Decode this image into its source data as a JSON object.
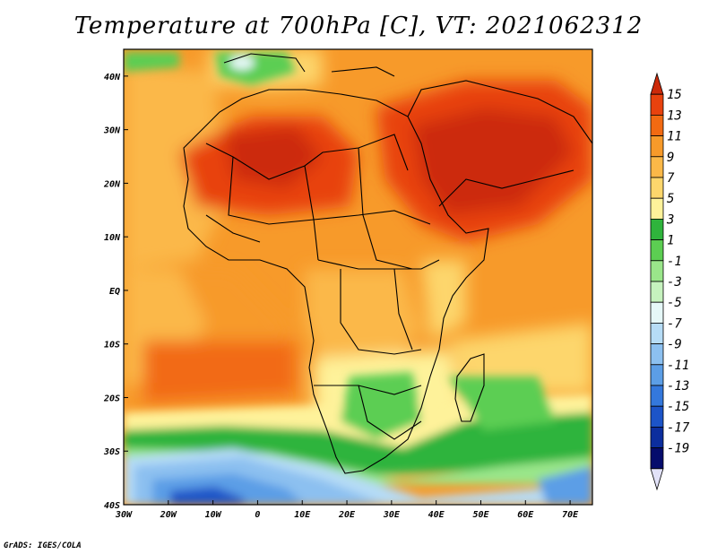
{
  "title": "Temperature at 700hPa [C], VT: 2021062312",
  "credit": "GrADS: IGES/COLA",
  "map": {
    "lon_range": [
      -30,
      75
    ],
    "lat_range": [
      -40,
      45
    ],
    "lon_ticks": [
      {
        "lon": -30,
        "label": "30W"
      },
      {
        "lon": -20,
        "label": "20W"
      },
      {
        "lon": -10,
        "label": "10W"
      },
      {
        "lon": 0,
        "label": "0"
      },
      {
        "lon": 10,
        "label": "10E"
      },
      {
        "lon": 20,
        "label": "20E"
      },
      {
        "lon": 30,
        "label": "30E"
      },
      {
        "lon": 40,
        "label": "40E"
      },
      {
        "lon": 50,
        "label": "50E"
      },
      {
        "lon": 60,
        "label": "60E"
      },
      {
        "lon": 70,
        "label": "70E"
      }
    ],
    "lat_ticks": [
      {
        "lat": 40,
        "label": "40N"
      },
      {
        "lat": 30,
        "label": "30N"
      },
      {
        "lat": 20,
        "label": "20N"
      },
      {
        "lat": 10,
        "label": "10N"
      },
      {
        "lat": 0,
        "label": "EQ"
      },
      {
        "lat": -10,
        "label": "10S"
      },
      {
        "lat": -20,
        "label": "20S"
      },
      {
        "lat": -30,
        "label": "30S"
      },
      {
        "lat": -40,
        "label": "40S"
      }
    ]
  },
  "colorbar": {
    "labels": [
      "15",
      "13",
      "11",
      "9",
      "7",
      "5",
      "3",
      "1",
      "-1",
      "-3",
      "-5",
      "-7",
      "-9",
      "-11",
      "-13",
      "-15",
      "-17",
      "-19"
    ],
    "colors": [
      "#cc2a0a",
      "#e8420e",
      "#f26a12",
      "#f79a2a",
      "#fbb848",
      "#fdd66c",
      "#fef29a",
      "#2fb43c",
      "#5cce52",
      "#9ae68a",
      "#c6f2be",
      "#e6f8f8",
      "#b6dcf6",
      "#8cc0f0",
      "#5c9ee6",
      "#3478dc",
      "#1c54c8",
      "#0c2e9e",
      "#050c6c",
      "#e2e2f8"
    ]
  }
}
